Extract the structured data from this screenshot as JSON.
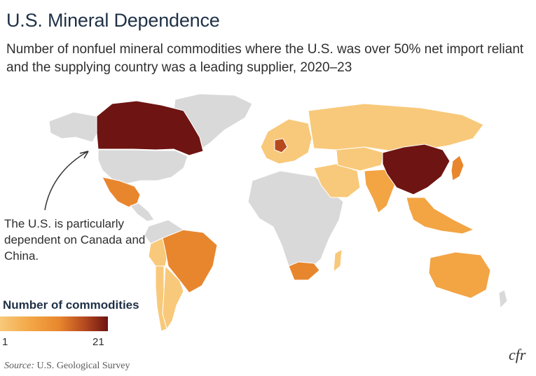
{
  "header": {
    "title": "U.S. Mineral Dependence",
    "subtitle": "Number of nonfuel mineral commodities where the U.S. was over 50% net import reliant and the supplying country was a leading supplier, 2020–23"
  },
  "annotation": {
    "text": "The U.S. is particularly dependent on Canada and China."
  },
  "legend": {
    "title": "Number of commodities",
    "min_label": "1",
    "max_label": "21",
    "min_value": 1,
    "max_value": 21,
    "color_low": "#f8c97a",
    "color_high": "#6e1412"
  },
  "footer": {
    "source_label": "Source:",
    "source_text": "U.S. Geological Survey",
    "logo_text": "cfr"
  },
  "colors": {
    "no_data": "#d9d9d9",
    "light": "#f8c97a",
    "mid_light": "#f3a443",
    "mid": "#e8862e",
    "mid_dark": "#b64a1f",
    "dark": "#6e1412"
  },
  "map_data": {
    "type": "choropleth",
    "highlighted": [
      "Canada",
      "China"
    ],
    "regions": [
      {
        "name": "Canada",
        "level": "dark"
      },
      {
        "name": "China",
        "level": "dark"
      },
      {
        "name": "Germany",
        "level": "mid_dark"
      },
      {
        "name": "Brazil",
        "level": "mid"
      },
      {
        "name": "Mexico",
        "level": "mid"
      },
      {
        "name": "Russia",
        "level": "light"
      },
      {
        "name": "Australia",
        "level": "mid_light"
      },
      {
        "name": "India",
        "level": "mid_light"
      },
      {
        "name": "Japan",
        "level": "mid"
      },
      {
        "name": "South Africa",
        "level": "mid"
      },
      {
        "name": "Argentina",
        "level": "light"
      },
      {
        "name": "Chile",
        "level": "light"
      },
      {
        "name": "Peru",
        "level": "light"
      }
    ]
  }
}
